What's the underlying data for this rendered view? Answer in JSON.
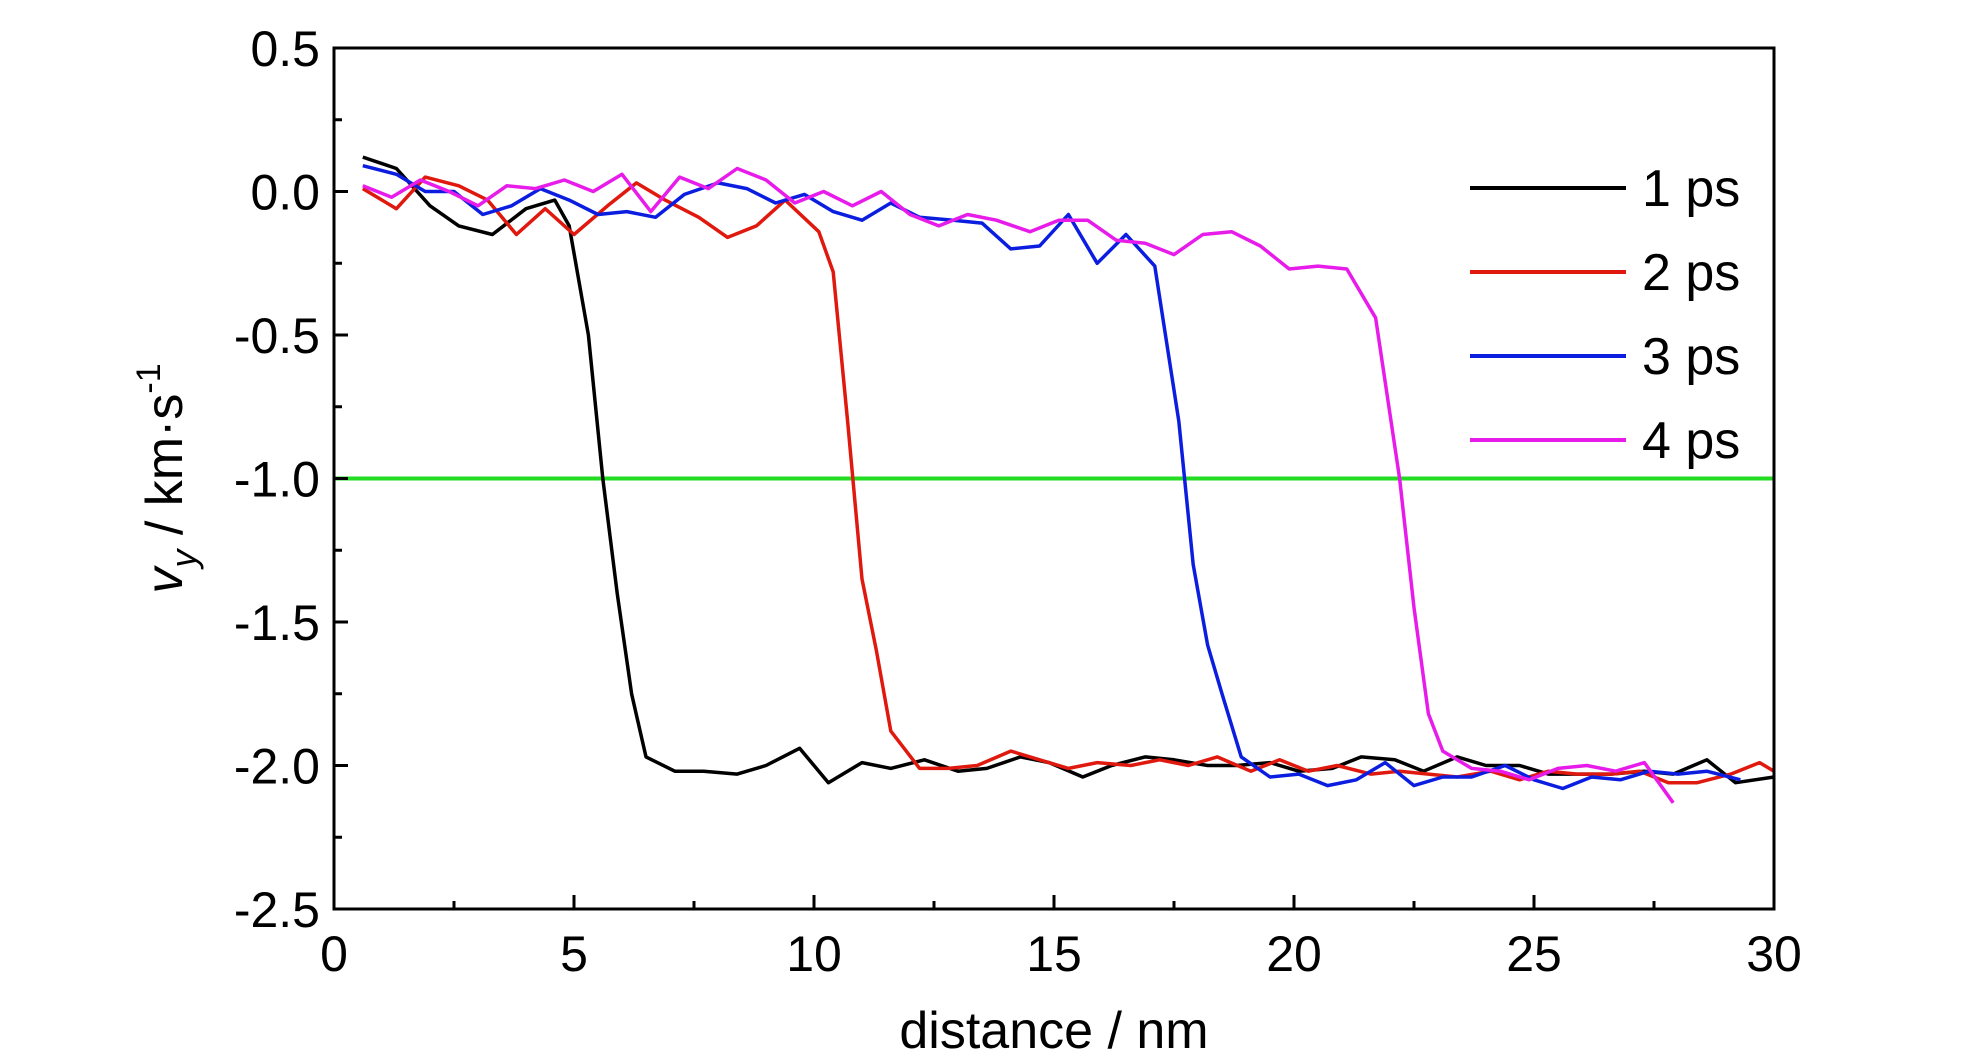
{
  "chart_data": {
    "type": "line",
    "title": "",
    "xlabel": "distance / nm",
    "ylabel": {
      "base": "v",
      "sub": "y",
      "rest": " / km·s",
      "sup": "-1"
    },
    "xlim": [
      0,
      30
    ],
    "ylim": [
      -2.5,
      0.5
    ],
    "x_ticks": [
      "0",
      "5",
      "10",
      "15",
      "20",
      "25",
      "30"
    ],
    "y_ticks": [
      "0.5",
      "0.0",
      "-0.5",
      "-1.0",
      "-1.5",
      "-2.0",
      "-2.5"
    ],
    "grid": false,
    "legend_position": "top-right",
    "reference_line": {
      "y": -1.0,
      "color": "#22dd22"
    },
    "series": [
      {
        "name": "1 ps",
        "color": "#000000",
        "points": [
          [
            0.6,
            0.12
          ],
          [
            1.3,
            0.08
          ],
          [
            2.0,
            -0.05
          ],
          [
            2.6,
            -0.12
          ],
          [
            3.3,
            -0.15
          ],
          [
            4.0,
            -0.06
          ],
          [
            4.6,
            -0.03
          ],
          [
            4.9,
            -0.12
          ],
          [
            5.3,
            -0.5
          ],
          [
            5.6,
            -1.0
          ],
          [
            5.9,
            -1.4
          ],
          [
            6.2,
            -1.75
          ],
          [
            6.5,
            -1.97
          ],
          [
            7.1,
            -2.02
          ],
          [
            7.7,
            -2.02
          ],
          [
            8.4,
            -2.03
          ],
          [
            9.0,
            -2.0
          ],
          [
            9.7,
            -1.94
          ],
          [
            10.3,
            -2.06
          ],
          [
            11.0,
            -1.99
          ],
          [
            11.6,
            -2.01
          ],
          [
            12.3,
            -1.98
          ],
          [
            13.0,
            -2.02
          ],
          [
            13.6,
            -2.01
          ],
          [
            14.3,
            -1.97
          ],
          [
            14.9,
            -1.99
          ],
          [
            15.6,
            -2.04
          ],
          [
            16.2,
            -2.0
          ],
          [
            16.9,
            -1.97
          ],
          [
            17.5,
            -1.98
          ],
          [
            18.2,
            -2.0
          ],
          [
            18.8,
            -2.0
          ],
          [
            19.5,
            -1.99
          ],
          [
            20.1,
            -2.02
          ],
          [
            20.8,
            -2.01
          ],
          [
            21.4,
            -1.97
          ],
          [
            22.1,
            -1.98
          ],
          [
            22.7,
            -2.02
          ],
          [
            23.4,
            -1.97
          ],
          [
            24.0,
            -2.0
          ],
          [
            24.7,
            -2.0
          ],
          [
            25.3,
            -2.03
          ],
          [
            26.0,
            -2.03
          ],
          [
            26.6,
            -2.03
          ],
          [
            27.3,
            -2.02
          ],
          [
            27.9,
            -2.03
          ],
          [
            28.6,
            -1.98
          ],
          [
            29.2,
            -2.06
          ],
          [
            30.0,
            -2.04
          ]
        ]
      },
      {
        "name": "2 ps",
        "color": "#e0190f",
        "points": [
          [
            0.6,
            0.01
          ],
          [
            1.3,
            -0.06
          ],
          [
            1.9,
            0.05
          ],
          [
            2.6,
            0.02
          ],
          [
            3.2,
            -0.03
          ],
          [
            3.8,
            -0.15
          ],
          [
            4.4,
            -0.06
          ],
          [
            5.0,
            -0.15
          ],
          [
            5.7,
            -0.05
          ],
          [
            6.3,
            0.03
          ],
          [
            6.9,
            -0.03
          ],
          [
            7.6,
            -0.09
          ],
          [
            8.2,
            -0.16
          ],
          [
            8.8,
            -0.12
          ],
          [
            9.4,
            -0.03
          ],
          [
            10.1,
            -0.14
          ],
          [
            10.4,
            -0.28
          ],
          [
            10.7,
            -0.8
          ],
          [
            11.0,
            -1.35
          ],
          [
            11.3,
            -1.6
          ],
          [
            11.6,
            -1.88
          ],
          [
            12.2,
            -2.01
          ],
          [
            12.8,
            -2.01
          ],
          [
            13.4,
            -2.0
          ],
          [
            14.1,
            -1.95
          ],
          [
            14.7,
            -1.98
          ],
          [
            15.3,
            -2.01
          ],
          [
            15.9,
            -1.99
          ],
          [
            16.6,
            -2.0
          ],
          [
            17.2,
            -1.98
          ],
          [
            17.8,
            -2.0
          ],
          [
            18.4,
            -1.97
          ],
          [
            19.1,
            -2.02
          ],
          [
            19.7,
            -1.98
          ],
          [
            20.3,
            -2.02
          ],
          [
            20.9,
            -2.0
          ],
          [
            21.6,
            -2.03
          ],
          [
            22.2,
            -2.02
          ],
          [
            22.8,
            -2.03
          ],
          [
            23.4,
            -2.04
          ],
          [
            24.1,
            -2.02
          ],
          [
            24.7,
            -2.05
          ],
          [
            25.3,
            -2.02
          ],
          [
            25.9,
            -2.03
          ],
          [
            26.6,
            -2.03
          ],
          [
            27.2,
            -2.02
          ],
          [
            27.8,
            -2.06
          ],
          [
            28.4,
            -2.06
          ],
          [
            29.1,
            -2.03
          ],
          [
            29.7,
            -1.99
          ],
          [
            30.0,
            -2.02
          ]
        ]
      },
      {
        "name": "3 ps",
        "color": "#0b1ee0",
        "points": [
          [
            0.6,
            0.09
          ],
          [
            1.3,
            0.06
          ],
          [
            1.9,
            0.0
          ],
          [
            2.5,
            0.0
          ],
          [
            3.1,
            -0.08
          ],
          [
            3.7,
            -0.05
          ],
          [
            4.3,
            0.01
          ],
          [
            4.9,
            -0.03
          ],
          [
            5.5,
            -0.08
          ],
          [
            6.1,
            -0.07
          ],
          [
            6.7,
            -0.09
          ],
          [
            7.3,
            -0.01
          ],
          [
            8.0,
            0.03
          ],
          [
            8.6,
            0.01
          ],
          [
            9.2,
            -0.04
          ],
          [
            9.8,
            -0.01
          ],
          [
            10.4,
            -0.07
          ],
          [
            11.0,
            -0.1
          ],
          [
            11.6,
            -0.04
          ],
          [
            12.2,
            -0.09
          ],
          [
            12.9,
            -0.1
          ],
          [
            13.5,
            -0.11
          ],
          [
            14.1,
            -0.2
          ],
          [
            14.7,
            -0.19
          ],
          [
            15.3,
            -0.08
          ],
          [
            15.9,
            -0.25
          ],
          [
            16.5,
            -0.15
          ],
          [
            17.1,
            -0.26
          ],
          [
            17.6,
            -0.8
          ],
          [
            17.9,
            -1.3
          ],
          [
            18.2,
            -1.58
          ],
          [
            18.5,
            -1.75
          ],
          [
            18.9,
            -1.97
          ],
          [
            19.5,
            -2.04
          ],
          [
            20.1,
            -2.03
          ],
          [
            20.7,
            -2.07
          ],
          [
            21.3,
            -2.05
          ],
          [
            21.9,
            -1.99
          ],
          [
            22.5,
            -2.07
          ],
          [
            23.1,
            -2.04
          ],
          [
            23.7,
            -2.04
          ],
          [
            24.4,
            -2.0
          ],
          [
            25.0,
            -2.05
          ],
          [
            25.6,
            -2.08
          ],
          [
            26.2,
            -2.04
          ],
          [
            26.8,
            -2.05
          ],
          [
            27.4,
            -2.02
          ],
          [
            28.0,
            -2.03
          ],
          [
            28.6,
            -2.02
          ],
          [
            29.3,
            -2.05
          ]
        ]
      },
      {
        "name": "4 ps",
        "color": "#e81cea",
        "points": [
          [
            0.6,
            0.02
          ],
          [
            1.2,
            -0.02
          ],
          [
            1.8,
            0.04
          ],
          [
            2.4,
            0.0
          ],
          [
            3.0,
            -0.05
          ],
          [
            3.6,
            0.02
          ],
          [
            4.2,
            0.01
          ],
          [
            4.8,
            0.04
          ],
          [
            5.4,
            0.0
          ],
          [
            6.0,
            0.06
          ],
          [
            6.6,
            -0.07
          ],
          [
            7.2,
            0.05
          ],
          [
            7.8,
            0.01
          ],
          [
            8.4,
            0.08
          ],
          [
            9.0,
            0.04
          ],
          [
            9.6,
            -0.04
          ],
          [
            10.2,
            0.0
          ],
          [
            10.8,
            -0.05
          ],
          [
            11.4,
            0.0
          ],
          [
            12.0,
            -0.08
          ],
          [
            12.6,
            -0.12
          ],
          [
            13.2,
            -0.08
          ],
          [
            13.8,
            -0.1
          ],
          [
            14.5,
            -0.14
          ],
          [
            15.1,
            -0.1
          ],
          [
            15.7,
            -0.1
          ],
          [
            16.3,
            -0.17
          ],
          [
            16.9,
            -0.18
          ],
          [
            17.5,
            -0.22
          ],
          [
            18.1,
            -0.15
          ],
          [
            18.7,
            -0.14
          ],
          [
            19.3,
            -0.19
          ],
          [
            19.9,
            -0.27
          ],
          [
            20.5,
            -0.26
          ],
          [
            21.1,
            -0.27
          ],
          [
            21.7,
            -0.44
          ],
          [
            22.2,
            -1.0
          ],
          [
            22.5,
            -1.45
          ],
          [
            22.8,
            -1.82
          ],
          [
            23.1,
            -1.95
          ],
          [
            23.7,
            -2.01
          ],
          [
            24.3,
            -2.02
          ],
          [
            24.9,
            -2.05
          ],
          [
            25.5,
            -2.01
          ],
          [
            26.1,
            -2.0
          ],
          [
            26.7,
            -2.02
          ],
          [
            27.3,
            -1.99
          ],
          [
            27.9,
            -2.13
          ]
        ]
      }
    ]
  }
}
